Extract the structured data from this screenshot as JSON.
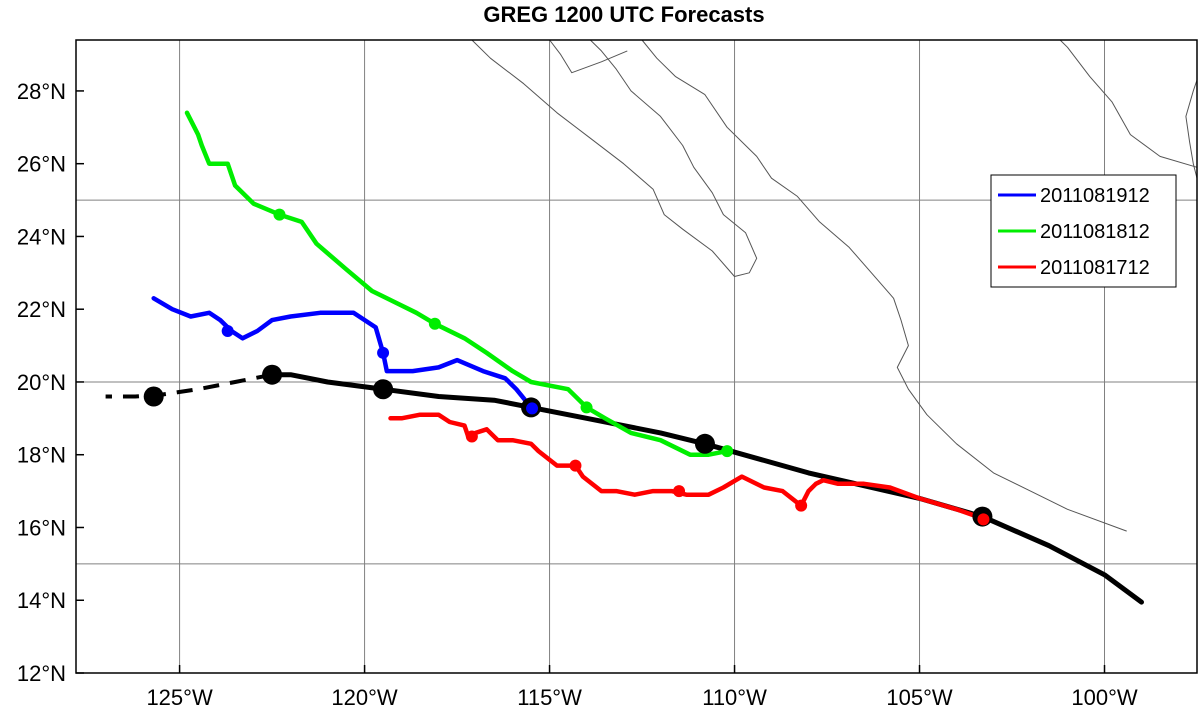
{
  "title": "GREG 1200 UTC Forecasts",
  "chart_data": {
    "type": "track-map",
    "title": "GREG 1200 UTC Forecasts",
    "xlim": [
      -127.8,
      -97.5
    ],
    "ylim": [
      12,
      29.4
    ],
    "x_ticks": [
      {
        "value": -125,
        "label": "125°W"
      },
      {
        "value": -120,
        "label": "120°W"
      },
      {
        "value": -115,
        "label": "115°W"
      },
      {
        "value": -110,
        "label": "110°W"
      },
      {
        "value": -105,
        "label": "105°W"
      },
      {
        "value": -100,
        "label": "100°W"
      }
    ],
    "y_ticks": [
      {
        "value": 12,
        "label": "12°N"
      },
      {
        "value": 14,
        "label": "14°N"
      },
      {
        "value": 16,
        "label": "16°N"
      },
      {
        "value": 18,
        "label": "18°N"
      },
      {
        "value": 20,
        "label": "20°N"
      },
      {
        "value": 22,
        "label": "22°N"
      },
      {
        "value": 24,
        "label": "24°N"
      },
      {
        "value": 26,
        "label": "26°N"
      },
      {
        "value": 28,
        "label": "28°N"
      }
    ],
    "gridlines": {
      "lon": [
        -125,
        -120,
        -115,
        -110,
        -105,
        -100
      ],
      "lat": [
        15,
        20,
        25
      ]
    },
    "legend_placement": "right",
    "legend": [
      {
        "label": "2011081912",
        "color": "#0000ff"
      },
      {
        "label": "2011081812",
        "color": "#00ee00"
      },
      {
        "label": "2011081712",
        "color": "#ff0000"
      }
    ],
    "best_track": {
      "color": "#000000",
      "solid": [
        [
          -99.0,
          13.95
        ],
        [
          -100.0,
          14.7
        ],
        [
          -101.5,
          15.5
        ],
        [
          -103.3,
          16.3
        ],
        [
          -105.0,
          16.8
        ],
        [
          -108.0,
          17.5
        ],
        [
          -110.8,
          18.3
        ],
        [
          -112.0,
          18.6
        ],
        [
          -114.0,
          19.0
        ],
        [
          -115.5,
          19.3
        ],
        [
          -116.5,
          19.5
        ],
        [
          -118.0,
          19.6
        ],
        [
          -119.5,
          19.8
        ],
        [
          -121.0,
          20.0
        ],
        [
          -122.0,
          20.2
        ],
        [
          -122.5,
          20.2
        ]
      ],
      "dashed": [
        [
          -122.5,
          20.2
        ],
        [
          -123.5,
          20.0
        ],
        [
          -124.5,
          19.8
        ],
        [
          -125.5,
          19.65
        ],
        [
          -126.2,
          19.6
        ],
        [
          -127.0,
          19.6
        ]
      ],
      "markers": [
        [
          -103.3,
          16.3
        ],
        [
          -110.8,
          18.3
        ],
        [
          -115.5,
          19.3
        ],
        [
          -119.5,
          19.8
        ],
        [
          -122.5,
          20.2
        ],
        [
          -125.7,
          19.6
        ]
      ]
    },
    "series": [
      {
        "name": "2011081912",
        "color": "#0000ff",
        "points": [
          [
            -115.5,
            19.3
          ],
          [
            -115.9,
            19.8
          ],
          [
            -116.2,
            20.1
          ],
          [
            -116.8,
            20.3
          ],
          [
            -117.5,
            20.6
          ],
          [
            -118.0,
            20.4
          ],
          [
            -118.7,
            20.3
          ],
          [
            -119.4,
            20.3
          ],
          [
            -119.5,
            20.8
          ],
          [
            -119.7,
            21.5
          ],
          [
            -120.3,
            21.9
          ],
          [
            -121.2,
            21.9
          ],
          [
            -122.0,
            21.8
          ],
          [
            -122.5,
            21.7
          ],
          [
            -122.9,
            21.4
          ],
          [
            -123.3,
            21.2
          ],
          [
            -123.6,
            21.4
          ],
          [
            -123.9,
            21.7
          ],
          [
            -124.2,
            21.9
          ],
          [
            -124.7,
            21.8
          ],
          [
            -125.2,
            22.0
          ],
          [
            -125.7,
            22.3
          ]
        ],
        "markers": [
          [
            -115.5,
            19.3
          ],
          [
            -119.5,
            20.8
          ],
          [
            -123.7,
            21.4
          ]
        ]
      },
      {
        "name": "2011081812",
        "color": "#00ee00",
        "points": [
          [
            -110.2,
            18.1
          ],
          [
            -110.7,
            18.0
          ],
          [
            -111.2,
            18.0
          ],
          [
            -112.0,
            18.4
          ],
          [
            -112.8,
            18.6
          ],
          [
            -113.5,
            19.0
          ],
          [
            -114.0,
            19.3
          ],
          [
            -114.5,
            19.8
          ],
          [
            -115.5,
            20.0
          ],
          [
            -116.0,
            20.3
          ],
          [
            -116.7,
            20.8
          ],
          [
            -117.3,
            21.2
          ],
          [
            -118.1,
            21.6
          ],
          [
            -118.6,
            21.9
          ],
          [
            -119.2,
            22.2
          ],
          [
            -119.8,
            22.5
          ],
          [
            -120.5,
            23.1
          ],
          [
            -121.3,
            23.8
          ],
          [
            -121.7,
            24.4
          ],
          [
            -122.3,
            24.6
          ],
          [
            -123.0,
            24.9
          ],
          [
            -123.5,
            25.4
          ],
          [
            -123.7,
            26.0
          ],
          [
            -124.2,
            26.0
          ],
          [
            -124.4,
            26.5
          ],
          [
            -124.5,
            26.8
          ],
          [
            -124.8,
            27.4
          ]
        ],
        "markers": [
          [
            -110.2,
            18.1
          ],
          [
            -114.0,
            19.3
          ],
          [
            -118.1,
            21.6
          ],
          [
            -122.3,
            24.6
          ]
        ]
      },
      {
        "name": "2011081712",
        "color": "#ff0000",
        "points": [
          [
            -103.3,
            16.25
          ],
          [
            -104.0,
            16.5
          ],
          [
            -105.0,
            16.8
          ],
          [
            -105.8,
            17.1
          ],
          [
            -106.5,
            17.2
          ],
          [
            -107.2,
            17.2
          ],
          [
            -107.6,
            17.3
          ],
          [
            -107.8,
            17.2
          ],
          [
            -108.0,
            17.0
          ],
          [
            -108.2,
            16.6
          ],
          [
            -108.7,
            17.0
          ],
          [
            -109.2,
            17.1
          ],
          [
            -109.8,
            17.4
          ],
          [
            -110.3,
            17.1
          ],
          [
            -110.7,
            16.9
          ],
          [
            -111.3,
            16.9
          ],
          [
            -111.7,
            17.0
          ],
          [
            -112.2,
            17.0
          ],
          [
            -112.7,
            16.9
          ],
          [
            -113.2,
            17.0
          ],
          [
            -113.6,
            17.0
          ],
          [
            -114.1,
            17.4
          ],
          [
            -114.3,
            17.7
          ],
          [
            -114.8,
            17.7
          ],
          [
            -115.3,
            18.1
          ],
          [
            -115.5,
            18.3
          ],
          [
            -116.0,
            18.4
          ],
          [
            -116.4,
            18.4
          ],
          [
            -116.7,
            18.7
          ],
          [
            -117.0,
            18.6
          ],
          [
            -117.2,
            18.5
          ],
          [
            -117.3,
            18.8
          ],
          [
            -117.7,
            18.9
          ],
          [
            -118.0,
            19.1
          ],
          [
            -118.5,
            19.1
          ],
          [
            -119.0,
            19.0
          ],
          [
            -119.3,
            19.0
          ]
        ],
        "markers": [
          [
            -103.3,
            16.25
          ],
          [
            -108.2,
            16.6
          ],
          [
            -111.5,
            17.0
          ],
          [
            -114.3,
            17.7
          ],
          [
            -117.1,
            18.5
          ]
        ]
      }
    ],
    "coastline_color": "#555555"
  }
}
